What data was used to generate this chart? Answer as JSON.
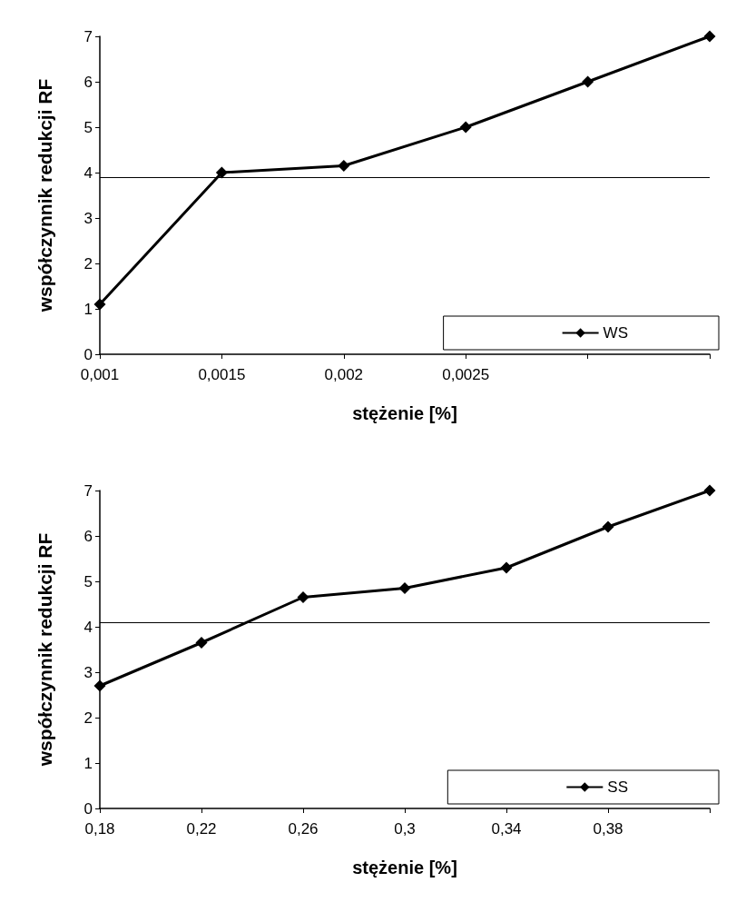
{
  "chart_data": [
    {
      "type": "line",
      "xlabel": "stężenie [%]",
      "ylabel": "współczynnik redukcji RF",
      "x": [
        0.001,
        0.0015,
        0.002,
        0.0025,
        0.003,
        0.0035
      ],
      "series": [
        {
          "name": "WS",
          "color": "#000000",
          "values": [
            1.1,
            4.0,
            4.15,
            5.0,
            6.0,
            7.0
          ]
        }
      ],
      "xlim": [
        0.001,
        0.0035
      ],
      "xticks": [
        {
          "value": 0.001,
          "label": "0,001"
        },
        {
          "value": 0.0015,
          "label": "0,0015"
        },
        {
          "value": 0.002,
          "label": "0,002"
        },
        {
          "value": 0.0025,
          "label": "0,0025"
        },
        {
          "value": 0.003,
          "label": null
        },
        {
          "value": 0.0035,
          "label": null
        }
      ],
      "ylim": [
        0,
        7
      ],
      "yticks": [
        0,
        1,
        2,
        3,
        4,
        5,
        6,
        7
      ],
      "grid": false,
      "legend": "bottom right",
      "marker": "diamond",
      "line_style": "solid",
      "ref_lines": [
        {
          "axis": "y",
          "value": 3.9,
          "color": "#000000"
        }
      ]
    },
    {
      "type": "line",
      "xlabel": "stężenie [%]",
      "ylabel": "współczynnik redukcji RF",
      "x": [
        0.18,
        0.22,
        0.26,
        0.3,
        0.34,
        0.38,
        0.42
      ],
      "series": [
        {
          "name": "SS",
          "color": "#000000",
          "values": [
            2.7,
            3.65,
            4.65,
            4.85,
            5.3,
            6.2,
            7.0
          ]
        }
      ],
      "xlim": [
        0.18,
        0.42
      ],
      "xticks": [
        {
          "value": 0.18,
          "label": "0,18"
        },
        {
          "value": 0.22,
          "label": "0,22"
        },
        {
          "value": 0.26,
          "label": "0,26"
        },
        {
          "value": 0.3,
          "label": "0,3"
        },
        {
          "value": 0.34,
          "label": "0,34"
        },
        {
          "value": 0.38,
          "label": "0,38"
        },
        {
          "value": 0.42,
          "label": null
        }
      ],
      "ylim": [
        0,
        7
      ],
      "yticks": [
        0,
        1,
        2,
        3,
        4,
        5,
        6,
        7
      ],
      "grid": false,
      "legend": "bottom right",
      "marker": "diamond",
      "line_style": "solid",
      "ref_lines": [
        {
          "axis": "y",
          "value": 4.1,
          "color": "#000000"
        }
      ]
    }
  ]
}
